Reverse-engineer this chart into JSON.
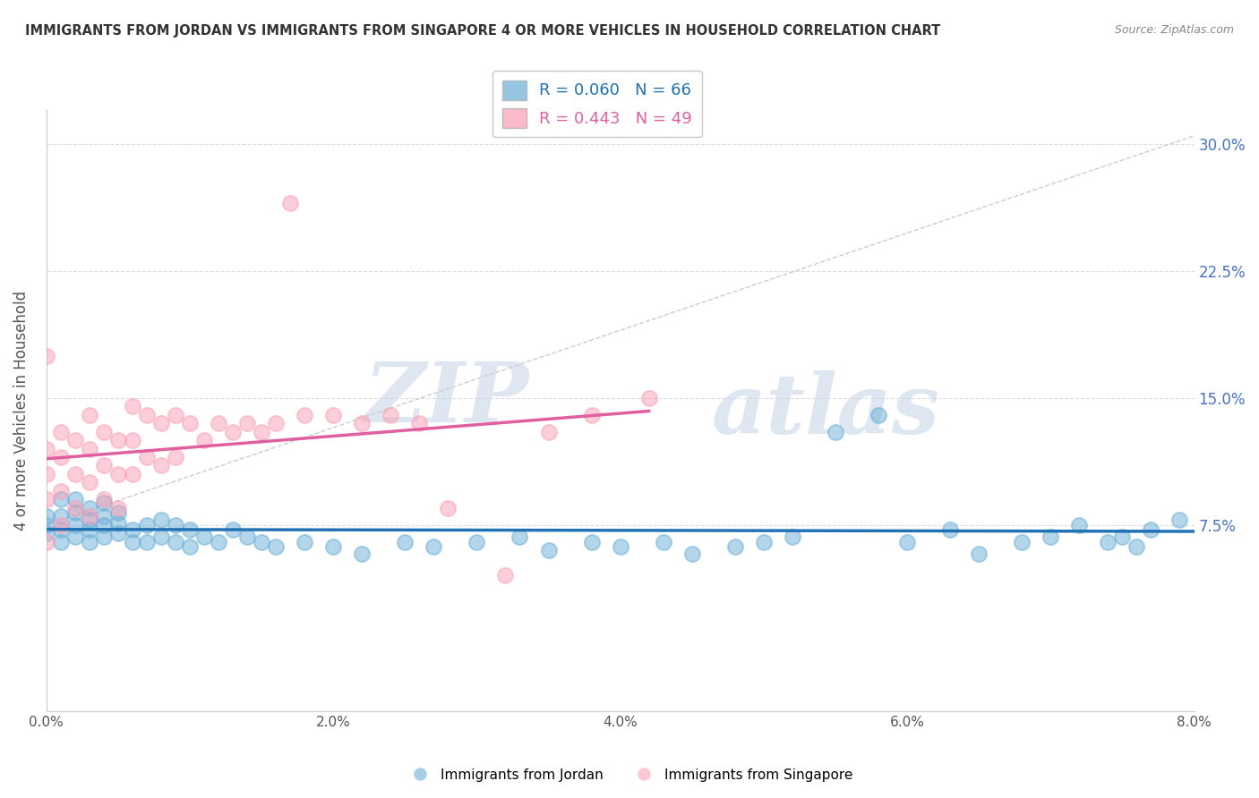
{
  "title": "IMMIGRANTS FROM JORDAN VS IMMIGRANTS FROM SINGAPORE 4 OR MORE VEHICLES IN HOUSEHOLD CORRELATION CHART",
  "source": "Source: ZipAtlas.com",
  "ylabel": "4 or more Vehicles in Household",
  "xlim": [
    0.0,
    0.08
  ],
  "ylim": [
    -0.035,
    0.32
  ],
  "xtick_labels": [
    "0.0%",
    "",
    "2.0%",
    "",
    "4.0%",
    "",
    "6.0%",
    "",
    "8.0%"
  ],
  "xtick_vals": [
    0.0,
    0.01,
    0.02,
    0.03,
    0.04,
    0.05,
    0.06,
    0.07,
    0.08
  ],
  "ytick_labels_right": [
    "7.5%",
    "15.0%",
    "22.5%",
    "30.0%"
  ],
  "ytick_vals": [
    0.075,
    0.15,
    0.225,
    0.3
  ],
  "jordan_R": 0.06,
  "jordan_N": 66,
  "singapore_R": 0.443,
  "singapore_N": 49,
  "jordan_color": "#6baed6",
  "singapore_color": "#fa9fb5",
  "jordan_line_color": "#2171b5",
  "singapore_line_color": "#e05fa0",
  "jordan_points_x": [
    0.0,
    0.0,
    0.0,
    0.001,
    0.001,
    0.001,
    0.001,
    0.002,
    0.002,
    0.002,
    0.002,
    0.003,
    0.003,
    0.003,
    0.003,
    0.004,
    0.004,
    0.004,
    0.004,
    0.005,
    0.005,
    0.005,
    0.006,
    0.006,
    0.007,
    0.007,
    0.008,
    0.008,
    0.009,
    0.009,
    0.01,
    0.01,
    0.011,
    0.012,
    0.013,
    0.014,
    0.015,
    0.016,
    0.018,
    0.02,
    0.022,
    0.025,
    0.027,
    0.03,
    0.033,
    0.035,
    0.038,
    0.04,
    0.043,
    0.045,
    0.048,
    0.05,
    0.052,
    0.055,
    0.058,
    0.06,
    0.063,
    0.065,
    0.068,
    0.07,
    0.072,
    0.074,
    0.075,
    0.076,
    0.077,
    0.079
  ],
  "jordan_points_y": [
    0.08,
    0.07,
    0.075,
    0.065,
    0.072,
    0.08,
    0.09,
    0.068,
    0.075,
    0.082,
    0.09,
    0.065,
    0.072,
    0.078,
    0.085,
    0.068,
    0.075,
    0.08,
    0.088,
    0.07,
    0.076,
    0.082,
    0.065,
    0.072,
    0.065,
    0.075,
    0.068,
    0.078,
    0.065,
    0.075,
    0.062,
    0.072,
    0.068,
    0.065,
    0.072,
    0.068,
    0.065,
    0.062,
    0.065,
    0.062,
    0.058,
    0.065,
    0.062,
    0.065,
    0.068,
    0.06,
    0.065,
    0.062,
    0.065,
    0.058,
    0.062,
    0.065,
    0.068,
    0.13,
    0.14,
    0.065,
    0.072,
    0.058,
    0.065,
    0.068,
    0.075,
    0.065,
    0.068,
    0.062,
    0.072,
    0.078
  ],
  "singapore_points_x": [
    0.0,
    0.0,
    0.0,
    0.0,
    0.0,
    0.001,
    0.001,
    0.001,
    0.001,
    0.002,
    0.002,
    0.002,
    0.003,
    0.003,
    0.003,
    0.003,
    0.004,
    0.004,
    0.004,
    0.005,
    0.005,
    0.005,
    0.006,
    0.006,
    0.006,
    0.007,
    0.007,
    0.008,
    0.008,
    0.009,
    0.009,
    0.01,
    0.011,
    0.012,
    0.013,
    0.014,
    0.015,
    0.016,
    0.017,
    0.018,
    0.02,
    0.022,
    0.024,
    0.026,
    0.028,
    0.032,
    0.035,
    0.038,
    0.042
  ],
  "singapore_points_y": [
    0.175,
    0.12,
    0.105,
    0.09,
    0.065,
    0.13,
    0.115,
    0.095,
    0.075,
    0.125,
    0.105,
    0.085,
    0.14,
    0.12,
    0.1,
    0.08,
    0.13,
    0.11,
    0.09,
    0.125,
    0.105,
    0.085,
    0.145,
    0.125,
    0.105,
    0.14,
    0.115,
    0.135,
    0.11,
    0.14,
    0.115,
    0.135,
    0.125,
    0.135,
    0.13,
    0.135,
    0.13,
    0.135,
    0.265,
    0.14,
    0.14,
    0.135,
    0.14,
    0.135,
    0.085,
    0.045,
    0.13,
    0.14,
    0.15
  ],
  "watermark_zip": "ZIP",
  "watermark_atlas": "atlas",
  "background_color": "#ffffff",
  "grid_color": "#dddddd"
}
